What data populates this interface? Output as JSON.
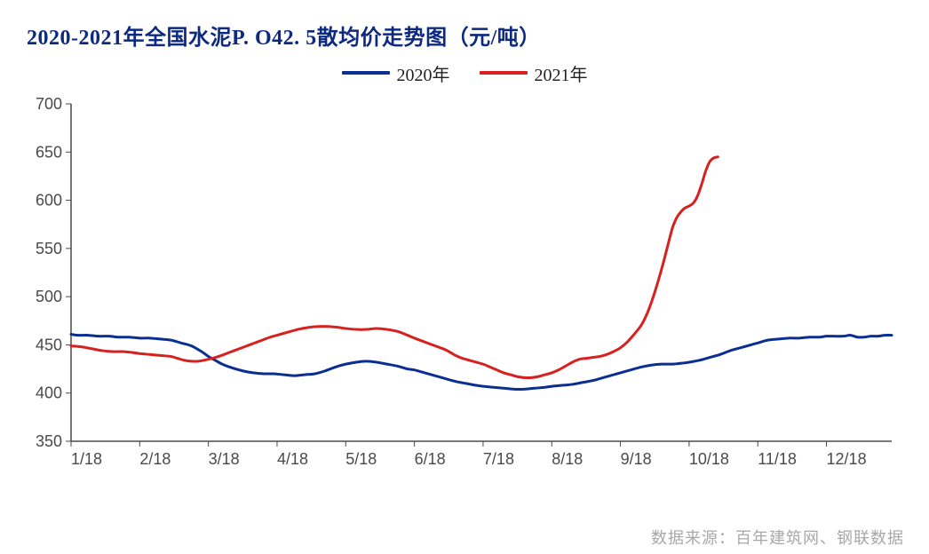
{
  "chart": {
    "type": "line",
    "title": "2020-2021年全国水泥P. O42. 5散均价走势图（元/吨）",
    "title_color": "#0d2a80",
    "title_fontsize": 24,
    "source_note": "数据来源：百年建筑网、钢联数据",
    "source_color": "#a8a8a8",
    "background_color": "#ffffff",
    "axis_color": "#4a4a4a",
    "axis_width": 1.5,
    "tick_fontsize": 18,
    "line_width": 3,
    "y_axis": {
      "min": 350,
      "max": 700,
      "step": 50,
      "ticks": [
        350,
        400,
        450,
        500,
        550,
        600,
        650,
        700
      ]
    },
    "x_axis": {
      "labels": [
        "1/18",
        "2/18",
        "3/18",
        "4/18",
        "5/18",
        "6/18",
        "7/18",
        "8/18",
        "9/18",
        "10/18",
        "11/18",
        "12/18"
      ],
      "positions": [
        0,
        1,
        2,
        3,
        4,
        5,
        6,
        7,
        8,
        9,
        10,
        11
      ]
    },
    "legend": {
      "items": [
        {
          "label": "2020年",
          "color": "#0b2e91"
        },
        {
          "label": "2021年",
          "color": "#d8201f"
        }
      ]
    },
    "series": [
      {
        "name": "2020年",
        "color": "#0b2e91",
        "points": [
          [
            0.0,
            461
          ],
          [
            0.1,
            460
          ],
          [
            0.25,
            460
          ],
          [
            0.4,
            459
          ],
          [
            0.55,
            459
          ],
          [
            0.7,
            458
          ],
          [
            0.85,
            458
          ],
          [
            1.0,
            457
          ],
          [
            1.15,
            457
          ],
          [
            1.3,
            456
          ],
          [
            1.45,
            455
          ],
          [
            1.6,
            452
          ],
          [
            1.75,
            449
          ],
          [
            1.9,
            443
          ],
          [
            2.0,
            438
          ],
          [
            2.1,
            434
          ],
          [
            2.2,
            430
          ],
          [
            2.35,
            426
          ],
          [
            2.5,
            423
          ],
          [
            2.65,
            421
          ],
          [
            2.8,
            420
          ],
          [
            2.95,
            420
          ],
          [
            3.1,
            419
          ],
          [
            3.25,
            418
          ],
          [
            3.4,
            419
          ],
          [
            3.55,
            420
          ],
          [
            3.7,
            423
          ],
          [
            3.85,
            427
          ],
          [
            4.0,
            430
          ],
          [
            4.15,
            432
          ],
          [
            4.3,
            433
          ],
          [
            4.45,
            432
          ],
          [
            4.6,
            430
          ],
          [
            4.75,
            428
          ],
          [
            4.9,
            425
          ],
          [
            5.0,
            424
          ],
          [
            5.15,
            421
          ],
          [
            5.3,
            418
          ],
          [
            5.45,
            415
          ],
          [
            5.6,
            412
          ],
          [
            5.75,
            410
          ],
          [
            5.9,
            408
          ],
          [
            6.0,
            407
          ],
          [
            6.15,
            406
          ],
          [
            6.3,
            405
          ],
          [
            6.45,
            404
          ],
          [
            6.6,
            404
          ],
          [
            6.75,
            405
          ],
          [
            6.9,
            406
          ],
          [
            7.0,
            407
          ],
          [
            7.15,
            408
          ],
          [
            7.3,
            409
          ],
          [
            7.45,
            411
          ],
          [
            7.6,
            413
          ],
          [
            7.75,
            416
          ],
          [
            7.9,
            419
          ],
          [
            8.0,
            421
          ],
          [
            8.15,
            424
          ],
          [
            8.3,
            427
          ],
          [
            8.45,
            429
          ],
          [
            8.6,
            430
          ],
          [
            8.75,
            430
          ],
          [
            8.9,
            431
          ],
          [
            9.0,
            432
          ],
          [
            9.15,
            434
          ],
          [
            9.3,
            437
          ],
          [
            9.45,
            440
          ],
          [
            9.6,
            444
          ],
          [
            9.75,
            447
          ],
          [
            9.9,
            450
          ],
          [
            10.0,
            452
          ],
          [
            10.15,
            455
          ],
          [
            10.3,
            456
          ],
          [
            10.45,
            457
          ],
          [
            10.6,
            457
          ],
          [
            10.75,
            458
          ],
          [
            10.9,
            458
          ],
          [
            11.0,
            459
          ],
          [
            11.1,
            459
          ],
          [
            11.25,
            459
          ],
          [
            11.35,
            460
          ],
          [
            11.45,
            458
          ],
          [
            11.55,
            458
          ],
          [
            11.65,
            459
          ],
          [
            11.75,
            459
          ],
          [
            11.85,
            460
          ],
          [
            11.95,
            460
          ]
        ]
      },
      {
        "name": "2021年",
        "color": "#d8201f",
        "points": [
          [
            0.0,
            449
          ],
          [
            0.15,
            448
          ],
          [
            0.3,
            446
          ],
          [
            0.45,
            444
          ],
          [
            0.6,
            443
          ],
          [
            0.75,
            443
          ],
          [
            0.9,
            442
          ],
          [
            1.0,
            441
          ],
          [
            1.15,
            440
          ],
          [
            1.3,
            439
          ],
          [
            1.45,
            438
          ],
          [
            1.55,
            436
          ],
          [
            1.65,
            434
          ],
          [
            1.75,
            433
          ],
          [
            1.85,
            433
          ],
          [
            2.0,
            435
          ],
          [
            2.15,
            438
          ],
          [
            2.3,
            442
          ],
          [
            2.45,
            446
          ],
          [
            2.6,
            450
          ],
          [
            2.75,
            454
          ],
          [
            2.9,
            458
          ],
          [
            3.0,
            460
          ],
          [
            3.15,
            463
          ],
          [
            3.3,
            466
          ],
          [
            3.45,
            468
          ],
          [
            3.6,
            469
          ],
          [
            3.75,
            469
          ],
          [
            3.9,
            468
          ],
          [
            4.0,
            467
          ],
          [
            4.15,
            466
          ],
          [
            4.3,
            466
          ],
          [
            4.45,
            467
          ],
          [
            4.6,
            466
          ],
          [
            4.75,
            464
          ],
          [
            4.9,
            460
          ],
          [
            5.0,
            457
          ],
          [
            5.15,
            453
          ],
          [
            5.3,
            449
          ],
          [
            5.45,
            445
          ],
          [
            5.55,
            441
          ],
          [
            5.6,
            439
          ],
          [
            5.7,
            436
          ],
          [
            5.8,
            434
          ],
          [
            5.9,
            432
          ],
          [
            6.0,
            430
          ],
          [
            6.1,
            427
          ],
          [
            6.2,
            424
          ],
          [
            6.3,
            421
          ],
          [
            6.4,
            419
          ],
          [
            6.5,
            417
          ],
          [
            6.6,
            416
          ],
          [
            6.7,
            416
          ],
          [
            6.8,
            417
          ],
          [
            6.9,
            419
          ],
          [
            7.0,
            421
          ],
          [
            7.1,
            424
          ],
          [
            7.2,
            428
          ],
          [
            7.3,
            432
          ],
          [
            7.4,
            435
          ],
          [
            7.5,
            436
          ],
          [
            7.6,
            437
          ],
          [
            7.7,
            438
          ],
          [
            7.8,
            440
          ],
          [
            7.9,
            443
          ],
          [
            8.0,
            447
          ],
          [
            8.1,
            453
          ],
          [
            8.2,
            461
          ],
          [
            8.3,
            470
          ],
          [
            8.38,
            481
          ],
          [
            8.46,
            496
          ],
          [
            8.54,
            514
          ],
          [
            8.62,
            534
          ],
          [
            8.7,
            556
          ],
          [
            8.76,
            572
          ],
          [
            8.82,
            582
          ],
          [
            8.88,
            588
          ],
          [
            8.94,
            592
          ],
          [
            9.0,
            594
          ],
          [
            9.06,
            597
          ],
          [
            9.12,
            604
          ],
          [
            9.18,
            616
          ],
          [
            9.24,
            630
          ],
          [
            9.3,
            640
          ],
          [
            9.36,
            644
          ],
          [
            9.42,
            645
          ]
        ]
      }
    ]
  }
}
